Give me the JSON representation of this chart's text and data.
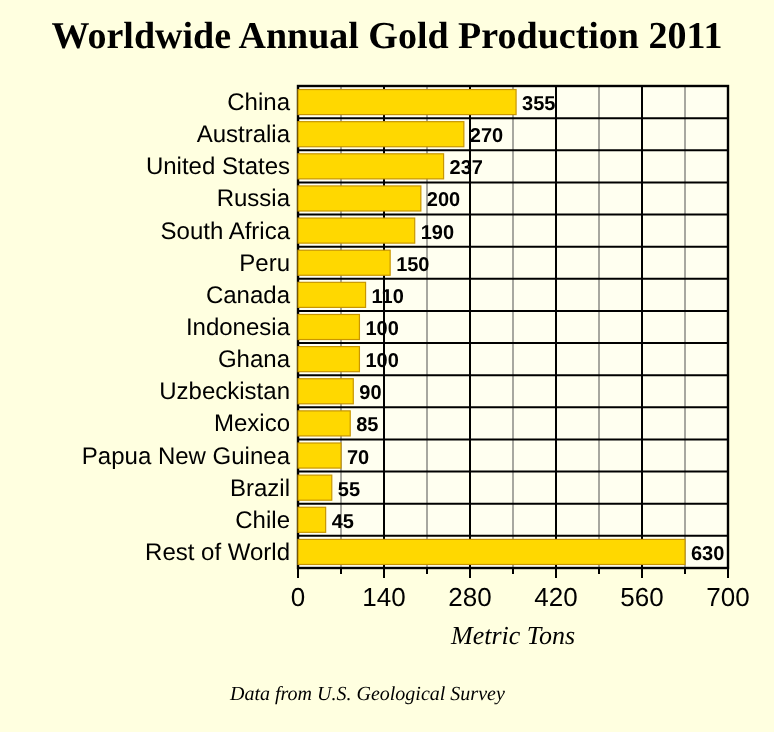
{
  "chart_data": {
    "type": "bar",
    "orientation": "horizontal",
    "title": "Worldwide Annual Gold Production 2011",
    "xlabel": "Metric Tons",
    "categories": [
      "China",
      "Australia",
      "United States",
      "Russia",
      "South Africa",
      "Peru",
      "Canada",
      "Indonesia",
      "Ghana",
      "Uzbeckistan",
      "Mexico",
      "Papua New Guinea",
      "Brazil",
      "Chile",
      "Rest of World"
    ],
    "values": [
      355,
      270,
      237,
      200,
      190,
      150,
      110,
      100,
      100,
      90,
      85,
      70,
      55,
      45,
      630
    ],
    "color": "#ffd800",
    "data_labels": true,
    "grid": true,
    "xlim": [
      0,
      700
    ],
    "xticks": [
      0,
      {
        "value": 70,
        "label": null
      },
      140,
      {
        "value": 210,
        "label": null
      },
      280,
      {
        "value": 350,
        "label": null
      },
      420,
      {
        "value": 490,
        "label": null
      },
      560,
      {
        "value": 630,
        "label": null
      },
      700
    ],
    "annotations": [
      "Data from U.S. Geological Survey"
    ]
  }
}
